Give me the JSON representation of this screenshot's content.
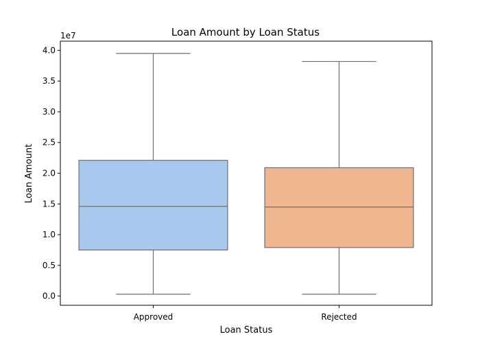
{
  "chart_data": {
    "type": "box",
    "title": "Loan Amount by Loan Status",
    "xlabel": "Loan Status",
    "ylabel": "Loan Amount",
    "y_offset_label": "1e7",
    "y_scale": 10000000,
    "ylim": [
      -1500000,
      41500000
    ],
    "yticks": [
      0.0,
      0.5,
      1.0,
      1.5,
      2.0,
      2.5,
      3.0,
      3.5,
      4.0
    ],
    "ytick_labels": [
      "0.0",
      "0.5",
      "1.0",
      "1.5",
      "2.0",
      "2.5",
      "3.0",
      "3.5",
      "4.0"
    ],
    "categories": [
      "Approved",
      "Rejected"
    ],
    "boxes": [
      {
        "category": "Approved",
        "whisker_low": 300000,
        "q1": 7500000,
        "median": 14600000,
        "q3": 22100000,
        "whisker_high": 39500000,
        "color": "#a9c8ee"
      },
      {
        "category": "Rejected",
        "whisker_low": 300000,
        "q1": 7900000,
        "median": 14500000,
        "q3": 20900000,
        "whisker_high": 38200000,
        "color": "#f0b690"
      }
    ],
    "grid": false,
    "legend": "none"
  }
}
